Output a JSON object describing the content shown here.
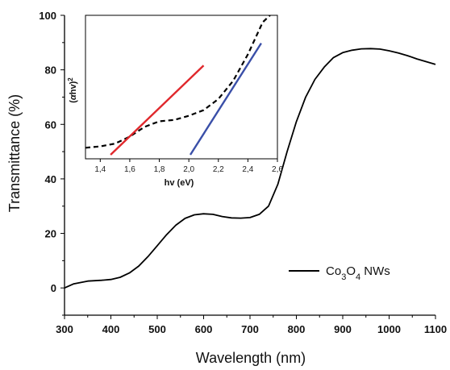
{
  "chart_data": [
    {
      "type": "line",
      "xlabel": "Wavelength (nm)",
      "ylabel": "Transmittance (%)",
      "xlim": [
        300,
        1100
      ],
      "ylim": [
        -10,
        100
      ],
      "xticks": [
        300,
        400,
        500,
        600,
        700,
        800,
        900,
        1000,
        1100
      ],
      "yticks": [
        0,
        20,
        40,
        60,
        80,
        100
      ],
      "legend_position": "right",
      "series": [
        {
          "name": "Co3O4 NWs",
          "color": "#000000",
          "x": [
            300,
            320,
            350,
            380,
            400,
            420,
            440,
            460,
            480,
            500,
            520,
            540,
            560,
            580,
            600,
            620,
            640,
            660,
            680,
            700,
            720,
            740,
            760,
            780,
            800,
            820,
            840,
            860,
            880,
            900,
            920,
            940,
            960,
            980,
            1000,
            1020,
            1040,
            1060,
            1080,
            1100
          ],
          "values": [
            0,
            1.5,
            2.5,
            2.8,
            3.1,
            3.9,
            5.5,
            8.0,
            11.5,
            15.5,
            19.5,
            23.0,
            25.5,
            26.8,
            27.2,
            27.0,
            26.2,
            25.7,
            25.6,
            25.8,
            27.0,
            30.0,
            38.0,
            50.0,
            61.0,
            70.0,
            76.5,
            81.0,
            84.5,
            86.3,
            87.2,
            87.7,
            87.8,
            87.6,
            87.0,
            86.2,
            85.2,
            84.0,
            83.0,
            82.0
          ]
        }
      ],
      "legend": [
        "Co3O4 NWs"
      ]
    },
    {
      "type": "line",
      "xlabel": "hv (eV)",
      "ylabel": "(αhv)2",
      "xlim": [
        1.3,
        2.6
      ],
      "ylim": [
        0,
        1
      ],
      "xticks": [
        "1,4",
        "1,6",
        "1,8",
        "2,0",
        "2,2",
        "2,4",
        "2,6"
      ],
      "xtick_values": [
        1.4,
        1.6,
        1.8,
        2.0,
        2.2,
        2.4,
        2.6
      ],
      "series": [
        {
          "style": "dashed",
          "color": "#000000",
          "x": [
            1.3,
            1.4,
            1.5,
            1.6,
            1.7,
            1.8,
            1.9,
            2.0,
            2.1,
            2.2,
            2.3,
            2.4,
            2.5,
            2.55
          ],
          "values": [
            0.05,
            0.06,
            0.08,
            0.13,
            0.2,
            0.24,
            0.25,
            0.28,
            0.32,
            0.4,
            0.53,
            0.72,
            0.95,
            1.0
          ]
        },
        {
          "style": "solid",
          "color": "#e0282c",
          "x": [
            1.47,
            2.1
          ],
          "values": [
            0.0,
            0.64
          ]
        },
        {
          "style": "solid",
          "color": "#3a4fa8",
          "x": [
            2.01,
            2.49
          ],
          "values": [
            0.0,
            0.8
          ]
        }
      ]
    }
  ],
  "legend_parts": {
    "co": "Co",
    "sub3": "3",
    "o": "O",
    "sub4": "4",
    "rest": " NWs"
  },
  "inset_ylabel_parts": {
    "open": "(",
    "alpha": "α",
    "hv": "hv",
    "close": ")",
    "sup": "2"
  }
}
